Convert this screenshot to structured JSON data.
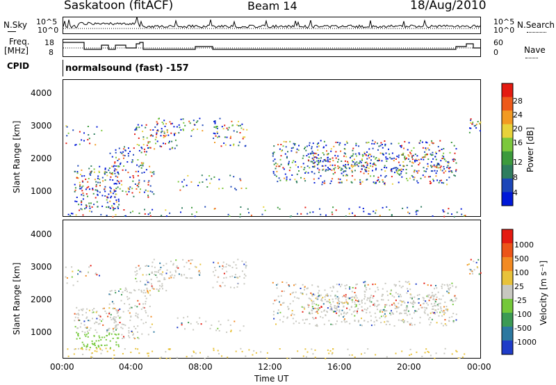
{
  "header": {
    "radar": "Saskatoon (fitACF)",
    "beam": "Beam 14",
    "date": "18/Aug/2010"
  },
  "noise_panel": {
    "left_label": "N.Sky",
    "left_ticks": [
      "10^5",
      "10^0"
    ],
    "right_label": "N.Search",
    "right_ticks": [
      "10^5",
      "10^0"
    ]
  },
  "freq_panel": {
    "left_label_1": "Freq.",
    "left_label_2": "[MHz]",
    "left_ticks": [
      "18",
      "8"
    ],
    "right_label": "Nave",
    "right_ticks": [
      "60",
      "0"
    ]
  },
  "cpid": {
    "label": "CPID",
    "value": "normalsound (fast) -157"
  },
  "x_axis": {
    "ticks": [
      "00:00",
      "04:00",
      "08:00",
      "12:00",
      "16:00",
      "20:00",
      "00:00"
    ],
    "label": "Time UT"
  },
  "power_panel": {
    "ylabel": "Slant Range [km]",
    "yticks": [
      "4000",
      "3000",
      "2000",
      "1000"
    ],
    "colorbar_label": "Power [dB]",
    "colorbar_ticks": [
      "28",
      "24",
      "20",
      "16",
      "12",
      "8",
      "4"
    ],
    "colors": [
      "#0018d8",
      "#1c46b8",
      "#2e7d5e",
      "#3c9a3c",
      "#7cc83c",
      "#e8d23a",
      "#f29a22",
      "#ee5a1a",
      "#e41a10"
    ]
  },
  "velocity_panel": {
    "ylabel": "Slant Range [km]",
    "yticks": [
      "4000",
      "3000",
      "2000",
      "1000"
    ],
    "colorbar_label": "Velocity [m s⁻¹]",
    "colorbar_ticks": [
      "1000",
      "500",
      "100",
      "25",
      "-25",
      "-100",
      "-500",
      "-1000"
    ],
    "colors": [
      "#1f3cc8",
      "#2c78a0",
      "#3c9a54",
      "#74c83a",
      "#c8c8c0",
      "#e8c23a",
      "#f28a22",
      "#ec5418",
      "#e41a10"
    ]
  },
  "chart_data": {
    "type": "heatmap",
    "time_range_hours": [
      0,
      24
    ],
    "range_km": [
      180,
      4500
    ],
    "gray_scale": "ground"
  }
}
